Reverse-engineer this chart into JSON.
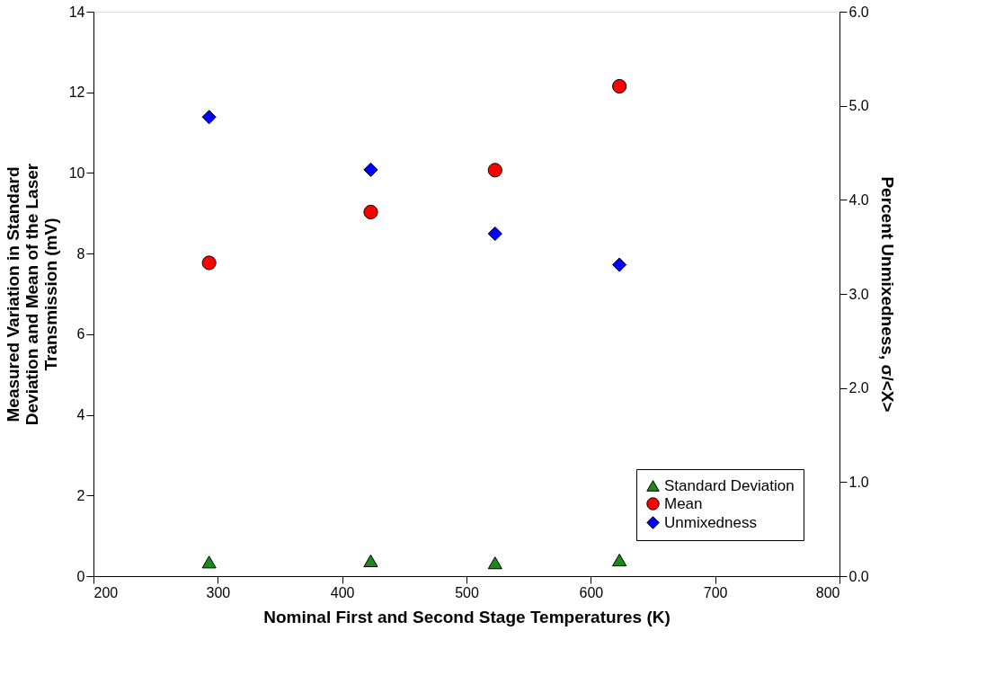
{
  "chart_data": {
    "type": "scatter",
    "xlabel": "Nominal First and Second Stage Temperatures (K)",
    "ylabel": "Measured Variation in Standard Deviation and Mean of the Laser Transmission (mV)",
    "y2label": "Percent Unmixedness, σ/<X>",
    "x": [
      293,
      423,
      523,
      623
    ],
    "series": [
      {
        "name": "Standard Deviation",
        "color": "#1a8a1a",
        "marker": "triangle",
        "values": [
          0.35,
          0.38,
          0.33,
          0.4
        ]
      },
      {
        "name": "Mean",
        "color": "#ff0000",
        "marker": "circle",
        "values": [
          7.77,
          9.03,
          10.07,
          12.15
        ]
      },
      {
        "name": "Unmixedness",
        "color": "#0000ff",
        "marker": "diamond",
        "axis": "y2",
        "values": [
          4.88,
          4.32,
          3.64,
          3.31
        ]
      }
    ],
    "xlim": [
      200,
      800
    ],
    "xticks": [
      200,
      300,
      400,
      500,
      600,
      700,
      800
    ],
    "ylim": [
      0,
      14
    ],
    "yticks": [
      0,
      2,
      4,
      6,
      8,
      10,
      12,
      14
    ],
    "y2lim": [
      0,
      6
    ],
    "y2ticks": [
      {
        "value": 0,
        "label": "0.0"
      },
      {
        "value": 1,
        "label": "1.0"
      },
      {
        "value": 2,
        "label": "2.0"
      },
      {
        "value": 3,
        "label": "3.0"
      },
      {
        "value": 4,
        "label": "4.0"
      },
      {
        "value": 5,
        "label": "5.0"
      },
      {
        "value": 6,
        "label": "6.0"
      }
    ],
    "grid": false,
    "legend": "bottom right"
  }
}
